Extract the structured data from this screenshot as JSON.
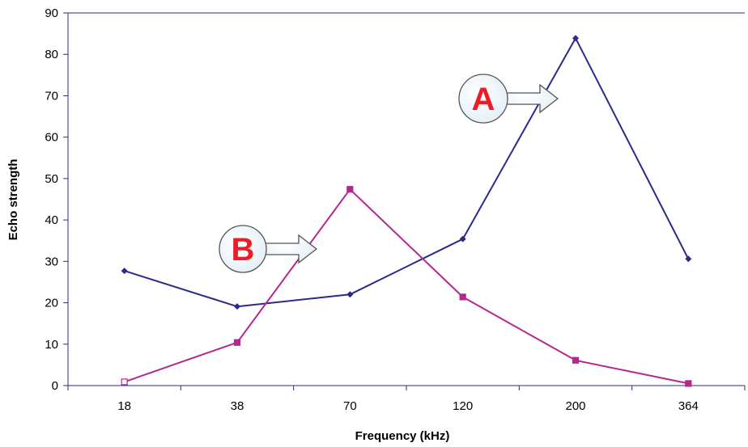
{
  "chart_data": {
    "type": "line",
    "title": "",
    "xlabel": "Frequency (kHz)",
    "ylabel": "Echo strength",
    "categories": [
      "18",
      "38",
      "70",
      "120",
      "200",
      "364"
    ],
    "ylim": [
      0,
      90
    ],
    "yticks": [
      0,
      10,
      20,
      30,
      40,
      50,
      60,
      70,
      80,
      90
    ],
    "grid": false,
    "legend": "none",
    "series": [
      {
        "values": [
          27.7,
          19.1,
          22.0,
          35.4,
          83.9,
          30.6
        ],
        "color": "#2b2a8a",
        "marker": "diamond"
      },
      {
        "values": [
          0.9,
          10.4,
          47.4,
          21.4,
          6.1,
          0.5
        ],
        "color": "#b5268f",
        "marker": "square"
      }
    ],
    "annotations": [
      {
        "label": "A",
        "points_to_category": "200"
      },
      {
        "label": "B",
        "points_to_category": "70"
      }
    ]
  }
}
